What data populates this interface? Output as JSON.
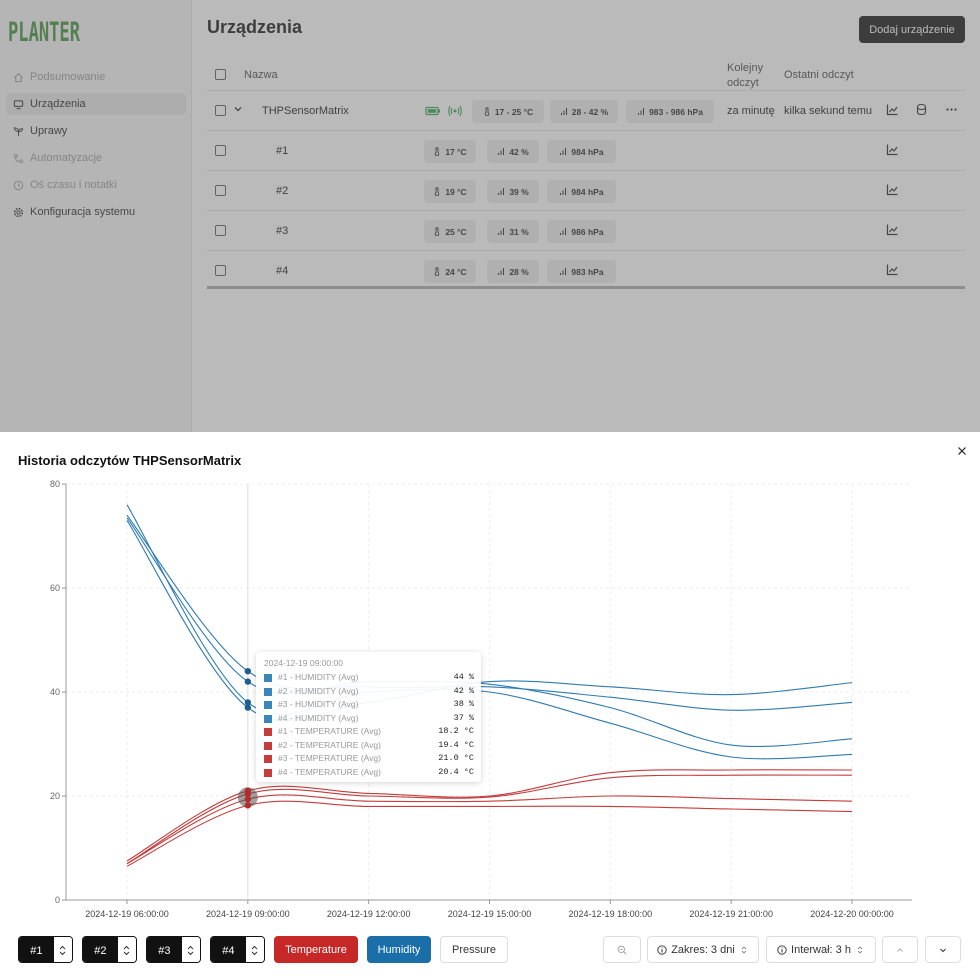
{
  "app": {
    "logo_text": "PLANTER",
    "page_title": "Urządzenia",
    "add_button": "Dodaj urządzenie",
    "nav": [
      {
        "label": "Podsumowanie",
        "icon": "home-icon",
        "state": "muted"
      },
      {
        "label": "Urządzenia",
        "icon": "devices-icon",
        "state": "active"
      },
      {
        "label": "Uprawy",
        "icon": "sprout-icon",
        "state": "normal"
      },
      {
        "label": "Automatyzacje",
        "icon": "automation-icon",
        "state": "muted"
      },
      {
        "label": "Oś czasu i notatki",
        "icon": "clock-icon",
        "state": "muted"
      },
      {
        "label": "Konfiguracja systemu",
        "icon": "gear-icon",
        "state": "normal"
      }
    ],
    "table": {
      "headers": {
        "name": "Nazwa",
        "next_reading_1": "Kolejny",
        "next_reading_2": "odczyt",
        "last_reading": "Ostatni odczyt"
      },
      "parent": {
        "name": "THPSensorMatrix",
        "temperature": "17 - 25 °C",
        "humidity": "28 - 42 %",
        "pressure": "983 - 986 hPa",
        "next_reading": "za minutę",
        "last_reading": "kilka sekund temu"
      },
      "children": [
        {
          "name": "#1",
          "temperature": "17 °C",
          "humidity": "42 %",
          "pressure": "984 hPa"
        },
        {
          "name": "#2",
          "temperature": "19 °C",
          "humidity": "39 %",
          "pressure": "984 hPa"
        },
        {
          "name": "#3",
          "temperature": "25 °C",
          "humidity": "31 %",
          "pressure": "986 hPa"
        },
        {
          "name": "#4",
          "temperature": "24 °C",
          "humidity": "28 %",
          "pressure": "983 hPa"
        }
      ]
    },
    "status_colors": {
      "ok": "#2e9e4a"
    }
  },
  "modal": {
    "title": "Historia odczytów THPSensorMatrix",
    "tooltip": {
      "header": "2024-12-19 09:00:00",
      "rows": [
        {
          "label": "#1 - HUMIDITY (Avg)",
          "value": "44 %",
          "color": "#3a86b8"
        },
        {
          "label": "#2 - HUMIDITY (Avg)",
          "value": "42 %",
          "color": "#3a86b8"
        },
        {
          "label": "#3 - HUMIDITY (Avg)",
          "value": "38 %",
          "color": "#3a86b8"
        },
        {
          "label": "#4 - HUMIDITY (Avg)",
          "value": "37 %",
          "color": "#3a86b8"
        },
        {
          "label": "#1 - TEMPERATURE (Avg)",
          "value": "18.2 °C",
          "color": "#c43c3c"
        },
        {
          "label": "#2 - TEMPERATURE (Avg)",
          "value": "19.4 °C",
          "color": "#c43c3c"
        },
        {
          "label": "#3 - TEMPERATURE (Avg)",
          "value": "21.0 °C",
          "color": "#c43c3c"
        },
        {
          "label": "#4 - TEMPERATURE (Avg)",
          "value": "20.4 °C",
          "color": "#c43c3c"
        }
      ]
    },
    "controls": {
      "sensors": [
        "#1",
        "#2",
        "#3",
        "#4"
      ],
      "metrics": {
        "temperature": "Temperature",
        "humidity": "Humidity",
        "pressure": "Pressure"
      },
      "range_label": "Zakres: 3 dni",
      "interval_label": "Interwał: 3 h"
    }
  },
  "chart_data": {
    "type": "line",
    "x": [
      "2024-12-19 06:00:00",
      "2024-12-19 09:00:00",
      "2024-12-19 12:00:00",
      "2024-12-19 15:00:00",
      "2024-12-19 18:00:00",
      "2024-12-19 21:00:00",
      "2024-12-20 00:00:00"
    ],
    "x_ticks": [
      "2024-12-19 06:00:00",
      "2024-12-19 09:00:00",
      "2024-12-19 12:00:00",
      "2024-12-19 15:00:00",
      "2024-12-19 18:00:00",
      "2024-12-19 21:00:00",
      "2024-12-20 00:00:00"
    ],
    "y_ticks": [
      "0",
      "20",
      "40",
      "60",
      "80"
    ],
    "ylim": [
      0,
      80
    ],
    "grid": true,
    "series": [
      {
        "group": "humidity",
        "color": "#2f7bb0",
        "values": [
          74,
          44,
          41,
          41,
          39,
          36.5,
          38
        ]
      },
      {
        "group": "humidity",
        "color": "#2f7bb0",
        "values": [
          73.5,
          42,
          42,
          41.5,
          37,
          29.8,
          31
        ]
      },
      {
        "group": "humidity",
        "color": "#2f7bb0",
        "values": [
          76,
          38,
          40,
          40,
          34,
          27.5,
          28
        ]
      },
      {
        "group": "humidity",
        "color": "#2f7bb0",
        "values": [
          73,
          37,
          38,
          42,
          41,
          39.5,
          41.8
        ]
      },
      {
        "group": "temperature",
        "color": "#c43c3c",
        "values": [
          6.5,
          18.2,
          18,
          18,
          18,
          17.5,
          17
        ]
      },
      {
        "group": "temperature",
        "color": "#c43c3c",
        "values": [
          7,
          19.4,
          19,
          19,
          20,
          19.5,
          19
        ]
      },
      {
        "group": "temperature",
        "color": "#c43c3c",
        "values": [
          7.5,
          21.0,
          20.5,
          20,
          24.5,
          25,
          25
        ]
      },
      {
        "group": "temperature",
        "color": "#c43c3c",
        "values": [
          7,
          20.4,
          20,
          19.8,
          23.5,
          24,
          24
        ]
      }
    ],
    "highlight_index": 1
  }
}
